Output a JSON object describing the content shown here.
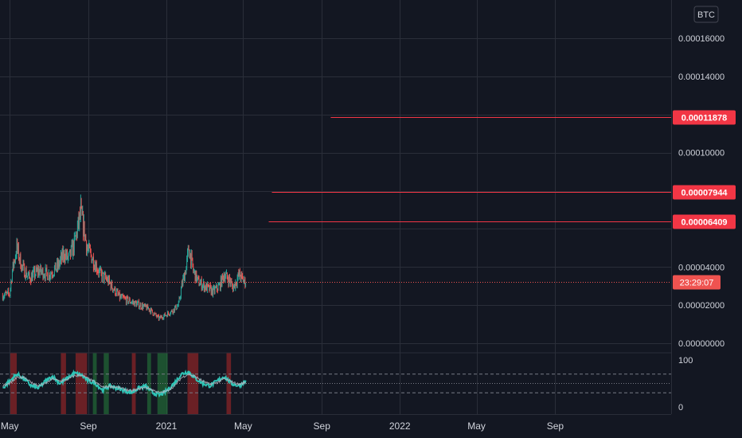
{
  "currency_label": "BTC",
  "countdown": "23:29:07",
  "colors": {
    "background": "#131722",
    "grid": "#2a2e39",
    "up": "#26a69a",
    "down": "#ef5350",
    "level_line": "#f23645",
    "oscillator_main": "#2ec4b6",
    "oscillator_signal": "#b2b5be",
    "band": "#787b86"
  },
  "chart_data": [
    {
      "type": "candlestick",
      "title": "",
      "ylabel": "",
      "yaxis_ticks": [
        "0.00016000",
        "0.00014000",
        "0.00010000",
        "0.00004000",
        "0.00002000",
        "0.00000000"
      ],
      "ylim": [
        0,
        0.000172
      ],
      "x_ticks": [
        "May",
        "Sep",
        "2021",
        "May",
        "Sep",
        "2022",
        "May",
        "Sep"
      ],
      "x_tick_dates": [
        "2020-05-01",
        "2020-09-01",
        "2021-01-01",
        "2021-05-01",
        "2021-09-01",
        "2022-01-01",
        "2022-05-01",
        "2022-09-01"
      ],
      "price_path": {
        "dates": [
          "2020-04-20",
          "2020-05-01",
          "2020-05-05",
          "2020-05-12",
          "2020-05-20",
          "2020-06-01",
          "2020-06-15",
          "2020-07-01",
          "2020-07-15",
          "2020-07-25",
          "2020-08-01",
          "2020-08-10",
          "2020-08-20",
          "2020-08-25",
          "2020-08-30",
          "2020-09-05",
          "2020-09-20",
          "2020-10-01",
          "2020-10-20",
          "2020-11-05",
          "2020-11-20",
          "2020-12-05",
          "2020-12-20",
          "2021-01-01",
          "2021-01-10",
          "2021-01-20",
          "2021-01-25",
          "2021-02-01",
          "2021-02-05",
          "2021-02-12",
          "2021-02-20",
          "2021-03-01",
          "2021-03-15",
          "2021-03-25",
          "2021-04-01",
          "2021-04-10",
          "2021-04-15",
          "2021-04-25",
          "2021-05-01",
          "2021-05-05"
        ],
        "close": [
          2.5e-05,
          2.6e-05,
          3.8e-05,
          5e-05,
          4e-05,
          3.4e-05,
          3.8e-05,
          3.6e-05,
          4e-05,
          4.7e-05,
          4.4e-05,
          5.2e-05,
          6.8e-05,
          6e-05,
          5e-05,
          4.6e-05,
          3.6e-05,
          3.3e-05,
          2.4e-05,
          2.2e-05,
          2e-05,
          1.8e-05,
          1.3e-05,
          1.5e-05,
          1.7e-05,
          2e-05,
          3e-05,
          4e-05,
          5e-05,
          3.8e-05,
          3.2e-05,
          3e-05,
          2.7e-05,
          3e-05,
          3.6e-05,
          3.3e-05,
          2.9e-05,
          3.6e-05,
          3.3e-05,
          3.2e-05
        ]
      },
      "all_time_high_wick": {
        "date": "2020-08-20",
        "value": 7.8e-05
      },
      "horizontal_levels": [
        {
          "label": "0.00011878",
          "value": 0.00011878,
          "start_date": "2021-09-15"
        },
        {
          "label": "0.00007944",
          "value": 7.944e-05,
          "start_date": "2021-06-15"
        },
        {
          "label": "0.00006409",
          "value": 6.409e-05,
          "start_date": "2021-06-10"
        }
      ],
      "last_price": 3.2e-05
    },
    {
      "type": "line",
      "title": "",
      "ylabel": "",
      "yaxis_ticks": [
        "100",
        "0"
      ],
      "ylim": [
        0,
        100
      ],
      "band_levels": [
        70,
        50,
        30
      ],
      "series": [
        {
          "values": [
            40,
            55,
            70,
            60,
            45,
            40,
            55,
            65,
            50,
            60,
            72,
            68,
            55,
            50,
            35,
            45,
            40,
            35,
            30,
            40,
            45,
            30,
            25,
            35,
            50,
            70,
            75,
            60,
            50,
            45,
            55,
            65,
            50,
            45,
            55
          ]
        },
        {
          "values": [
            45,
            50,
            62,
            64,
            52,
            45,
            50,
            60,
            55,
            58,
            66,
            68,
            60,
            52,
            42,
            44,
            42,
            38,
            34,
            38,
            42,
            36,
            30,
            34,
            44,
            62,
            70,
            64,
            55,
            48,
            52,
            60,
            54,
            48,
            52
          ]
        }
      ],
      "series_dates_range": [
        "2020-04-20",
        "2021-05-05"
      ],
      "highlight_zones": [
        {
          "color": "red",
          "start": "2020-05-02",
          "end": "2020-05-12"
        },
        {
          "color": "red",
          "start": "2020-07-20",
          "end": "2020-07-28"
        },
        {
          "color": "red",
          "start": "2020-08-12",
          "end": "2020-08-30"
        },
        {
          "color": "green",
          "start": "2020-09-08",
          "end": "2020-09-14"
        },
        {
          "color": "green",
          "start": "2020-09-25",
          "end": "2020-10-03"
        },
        {
          "color": "red",
          "start": "2020-11-08",
          "end": "2020-11-14"
        },
        {
          "color": "green",
          "start": "2020-12-02",
          "end": "2020-12-08"
        },
        {
          "color": "green",
          "start": "2020-12-18",
          "end": "2021-01-03"
        },
        {
          "color": "red",
          "start": "2021-02-03",
          "end": "2021-02-20"
        },
        {
          "color": "red",
          "start": "2021-04-05",
          "end": "2021-04-12"
        }
      ]
    }
  ]
}
